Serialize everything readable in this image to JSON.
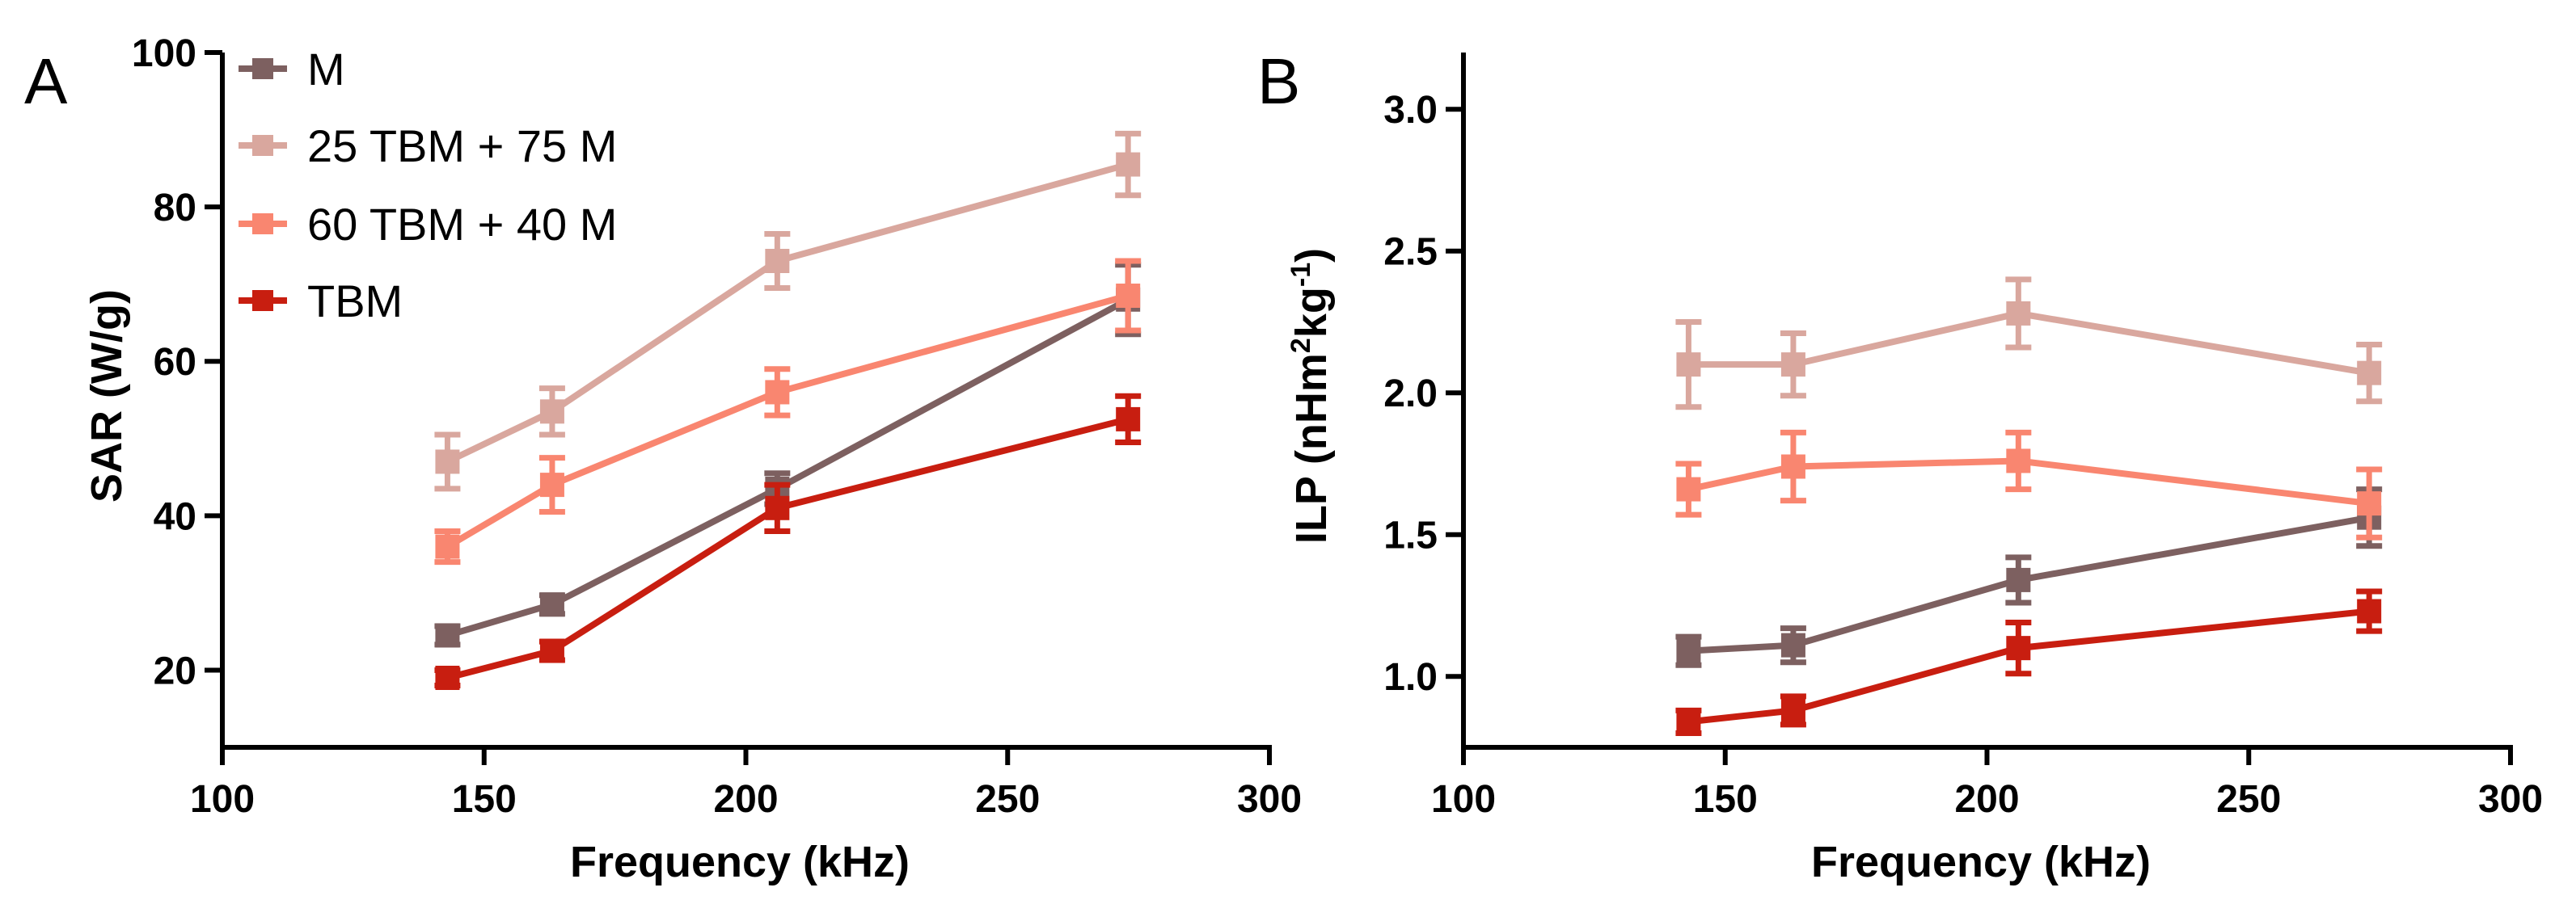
{
  "chart_data": [
    {
      "type": "line",
      "panel": "A",
      "xlabel": "Frequency (kHz)",
      "ylabel": "SAR (W/g)",
      "xlim": [
        100,
        300
      ],
      "ylim": [
        10,
        100
      ],
      "xticks": [
        100,
        150,
        200,
        250,
        300
      ],
      "yticks": [
        20,
        40,
        60,
        80,
        100
      ],
      "x": [
        143,
        163,
        206,
        273
      ],
      "series": [
        {
          "name": "M",
          "values": [
            24.5,
            28.5,
            43.5,
            68
          ],
          "errors": [
            1.2,
            1.2,
            2.0,
            4.5
          ]
        },
        {
          "name": "25 TBM + 75 M",
          "values": [
            47,
            53.5,
            73,
            85.5
          ],
          "errors": [
            3.5,
            3.0,
            3.5,
            4.0
          ]
        },
        {
          "name": "60 TBM + 40 M",
          "values": [
            36,
            44,
            56,
            68.5
          ],
          "errors": [
            2.0,
            3.5,
            3.0,
            4.5
          ]
        },
        {
          "name": "TBM",
          "values": [
            19,
            22.5,
            41,
            52.5
          ],
          "errors": [
            1.0,
            1.2,
            3.0,
            3.0
          ]
        }
      ],
      "legend": {
        "position": "top-left",
        "entries": [
          "M",
          "25 TBM + 75 M",
          "60 TBM + 40 M",
          "TBM"
        ]
      }
    },
    {
      "type": "line",
      "panel": "B",
      "xlabel": "Frequency (kHz)",
      "ylabel": "ILP (nHm",
      "ylabel_sup1": "2",
      "ylabel_mid": "kg",
      "ylabel_sup2": "-1",
      "ylabel_end": ")",
      "xlim": [
        100,
        300
      ],
      "ylim": [
        0.75,
        3.2
      ],
      "xticks": [
        100,
        150,
        200,
        250,
        300
      ],
      "yticks": [
        1.0,
        1.5,
        2.0,
        2.5,
        3.0
      ],
      "ytick_labels": [
        "1.0",
        "1.5",
        "2.0",
        "2.5",
        "3.0"
      ],
      "x": [
        143,
        163,
        206,
        273
      ],
      "series": [
        {
          "name": "M",
          "values": [
            1.09,
            1.11,
            1.34,
            1.56
          ],
          "errors": [
            0.05,
            0.06,
            0.08,
            0.1
          ]
        },
        {
          "name": "25 TBM + 75 M",
          "values": [
            2.1,
            2.1,
            2.28,
            2.07
          ],
          "errors": [
            0.15,
            0.11,
            0.12,
            0.1
          ]
        },
        {
          "name": "60 TBM + 40 M",
          "values": [
            1.66,
            1.74,
            1.76,
            1.61
          ],
          "errors": [
            0.09,
            0.12,
            0.1,
            0.12
          ]
        },
        {
          "name": "TBM",
          "values": [
            0.84,
            0.88,
            1.1,
            1.23
          ],
          "errors": [
            0.04,
            0.05,
            0.09,
            0.07
          ]
        }
      ]
    }
  ],
  "colors": {
    "M": "#7d6060",
    "25 TBM + 75 M": "#d9a79e",
    "60 TBM + 40 M": "#f98670",
    "TBM": "#c81e10"
  }
}
